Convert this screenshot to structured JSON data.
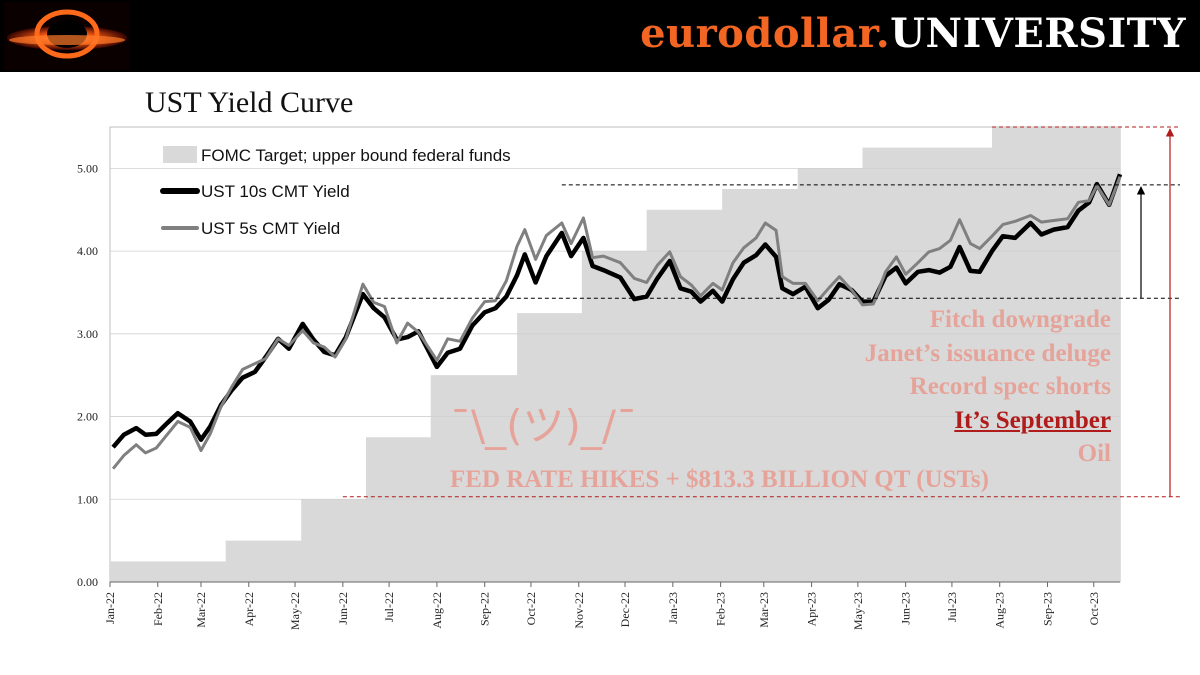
{
  "brand": {
    "part1": "eurodollar.",
    "part2": "UNIVERSITY"
  },
  "colors": {
    "brand_orange": "#f26522",
    "annotation": "#e6a39a",
    "emphasis": "#b01c1c",
    "band": "#d9d9d9",
    "ten_year": "#000000",
    "five_year": "#808080"
  },
  "chart_data": {
    "type": "line",
    "title": "UST Yield Curve",
    "xlabel": "",
    "ylabel": "",
    "ylim": [
      0,
      5.5
    ],
    "y_ticks": [
      "0.00",
      "1.00",
      "2.00",
      "3.00",
      "4.00",
      "5.00"
    ],
    "x_range": [
      "2022-01-01",
      "2023-10-18"
    ],
    "x_ticks": [
      {
        "label": "Jan-22",
        "date": "2022-01-01"
      },
      {
        "label": "Feb-22",
        "date": "2022-02-01"
      },
      {
        "label": "Mar-22",
        "date": "2022-03-01"
      },
      {
        "label": "Apr-22",
        "date": "2022-04-01"
      },
      {
        "label": "May-22",
        "date": "2022-05-01"
      },
      {
        "label": "Jun-22",
        "date": "2022-06-01"
      },
      {
        "label": "Jul-22",
        "date": "2022-07-01"
      },
      {
        "label": "Aug-22",
        "date": "2022-08-01"
      },
      {
        "label": "Sep-22",
        "date": "2022-09-01"
      },
      {
        "label": "Oct-22",
        "date": "2022-10-01"
      },
      {
        "label": "Nov-22",
        "date": "2022-11-01"
      },
      {
        "label": "Dec-22",
        "date": "2022-12-01"
      },
      {
        "label": "Jan-23",
        "date": "2023-01-01"
      },
      {
        "label": "Feb-23",
        "date": "2023-02-01"
      },
      {
        "label": "Mar-23",
        "date": "2023-03-01"
      },
      {
        "label": "Apr-23",
        "date": "2023-04-01"
      },
      {
        "label": "May-23",
        "date": "2023-05-01"
      },
      {
        "label": "Jun-23",
        "date": "2023-06-01"
      },
      {
        "label": "Jul-23",
        "date": "2023-07-01"
      },
      {
        "label": "Aug-23",
        "date": "2023-08-01"
      },
      {
        "label": "Sep-23",
        "date": "2023-09-01"
      },
      {
        "label": "Oct-23",
        "date": "2023-10-01"
      }
    ],
    "grid": true,
    "legend": "top-left",
    "band": {
      "name": "FOMC Target; upper bound federal funds",
      "steps": [
        {
          "date": "2022-01-01",
          "value": 0.25
        },
        {
          "date": "2022-03-17",
          "value": 0.5
        },
        {
          "date": "2022-05-05",
          "value": 1.0
        },
        {
          "date": "2022-06-16",
          "value": 1.75
        },
        {
          "date": "2022-07-28",
          "value": 2.5
        },
        {
          "date": "2022-09-22",
          "value": 3.25
        },
        {
          "date": "2022-11-03",
          "value": 4.0
        },
        {
          "date": "2022-12-15",
          "value": 4.5
        },
        {
          "date": "2023-02-02",
          "value": 4.75
        },
        {
          "date": "2023-03-23",
          "value": 5.0
        },
        {
          "date": "2023-05-04",
          "value": 5.25
        },
        {
          "date": "2023-07-27",
          "value": 5.5
        }
      ]
    },
    "series": [
      {
        "name": "UST 10s CMT Yield",
        "points": [
          [
            "2022-01-03",
            1.63
          ],
          [
            "2022-01-10",
            1.78
          ],
          [
            "2022-01-18",
            1.86
          ],
          [
            "2022-01-24",
            1.78
          ],
          [
            "2022-01-31",
            1.79
          ],
          [
            "2022-02-07",
            1.92
          ],
          [
            "2022-02-14",
            2.04
          ],
          [
            "2022-02-22",
            1.94
          ],
          [
            "2022-03-01",
            1.72
          ],
          [
            "2022-03-07",
            1.88
          ],
          [
            "2022-03-14",
            2.14
          ],
          [
            "2022-03-21",
            2.32
          ],
          [
            "2022-03-28",
            2.47
          ],
          [
            "2022-04-05",
            2.54
          ],
          [
            "2022-04-12",
            2.72
          ],
          [
            "2022-04-20",
            2.94
          ],
          [
            "2022-04-27",
            2.82
          ],
          [
            "2022-05-06",
            3.12
          ],
          [
            "2022-05-13",
            2.93
          ],
          [
            "2022-05-20",
            2.78
          ],
          [
            "2022-05-27",
            2.74
          ],
          [
            "2022-06-03",
            2.96
          ],
          [
            "2022-06-14",
            3.48
          ],
          [
            "2022-06-21",
            3.31
          ],
          [
            "2022-06-28",
            3.2
          ],
          [
            "2022-07-06",
            2.93
          ],
          [
            "2022-07-13",
            2.96
          ],
          [
            "2022-07-20",
            3.03
          ],
          [
            "2022-08-01",
            2.6
          ],
          [
            "2022-08-08",
            2.77
          ],
          [
            "2022-08-16",
            2.82
          ],
          [
            "2022-08-24",
            3.1
          ],
          [
            "2022-09-01",
            3.26
          ],
          [
            "2022-09-08",
            3.31
          ],
          [
            "2022-09-15",
            3.45
          ],
          [
            "2022-09-22",
            3.71
          ],
          [
            "2022-09-27",
            3.96
          ],
          [
            "2022-10-04",
            3.62
          ],
          [
            "2022-10-11",
            3.94
          ],
          [
            "2022-10-21",
            4.22
          ],
          [
            "2022-10-27",
            3.94
          ],
          [
            "2022-11-04",
            4.16
          ],
          [
            "2022-11-10",
            3.82
          ],
          [
            "2022-11-17",
            3.77
          ],
          [
            "2022-11-28",
            3.68
          ],
          [
            "2022-12-07",
            3.42
          ],
          [
            "2022-12-15",
            3.45
          ],
          [
            "2022-12-22",
            3.67
          ],
          [
            "2022-12-30",
            3.88
          ],
          [
            "2023-01-06",
            3.55
          ],
          [
            "2023-01-13",
            3.51
          ],
          [
            "2023-01-19",
            3.39
          ],
          [
            "2023-01-27",
            3.52
          ],
          [
            "2023-02-02",
            3.39
          ],
          [
            "2023-02-09",
            3.66
          ],
          [
            "2023-02-16",
            3.86
          ],
          [
            "2023-02-24",
            3.95
          ],
          [
            "2023-03-02",
            4.08
          ],
          [
            "2023-03-09",
            3.93
          ],
          [
            "2023-03-13",
            3.55
          ],
          [
            "2023-03-20",
            3.48
          ],
          [
            "2023-03-28",
            3.57
          ],
          [
            "2023-04-05",
            3.31
          ],
          [
            "2023-04-12",
            3.41
          ],
          [
            "2023-04-19",
            3.6
          ],
          [
            "2023-04-27",
            3.53
          ],
          [
            "2023-05-04",
            3.39
          ],
          [
            "2023-05-11",
            3.39
          ],
          [
            "2023-05-19",
            3.7
          ],
          [
            "2023-05-26",
            3.8
          ],
          [
            "2023-06-01",
            3.61
          ],
          [
            "2023-06-09",
            3.75
          ],
          [
            "2023-06-16",
            3.77
          ],
          [
            "2023-06-23",
            3.74
          ],
          [
            "2023-06-30",
            3.81
          ],
          [
            "2023-07-06",
            4.05
          ],
          [
            "2023-07-13",
            3.76
          ],
          [
            "2023-07-19",
            3.75
          ],
          [
            "2023-07-27",
            4.0
          ],
          [
            "2023-08-03",
            4.18
          ],
          [
            "2023-08-11",
            4.16
          ],
          [
            "2023-08-21",
            4.34
          ],
          [
            "2023-08-28",
            4.2
          ],
          [
            "2023-09-05",
            4.26
          ],
          [
            "2023-09-14",
            4.29
          ],
          [
            "2023-09-21",
            4.49
          ],
          [
            "2023-09-28",
            4.59
          ],
          [
            "2023-10-03",
            4.81
          ],
          [
            "2023-10-11",
            4.56
          ],
          [
            "2023-10-18",
            4.93
          ]
        ]
      },
      {
        "name": "UST 5s CMT Yield",
        "points": [
          [
            "2022-01-03",
            1.37
          ],
          [
            "2022-01-10",
            1.53
          ],
          [
            "2022-01-18",
            1.66
          ],
          [
            "2022-01-24",
            1.56
          ],
          [
            "2022-01-31",
            1.62
          ],
          [
            "2022-02-07",
            1.78
          ],
          [
            "2022-02-14",
            1.94
          ],
          [
            "2022-02-22",
            1.87
          ],
          [
            "2022-03-01",
            1.59
          ],
          [
            "2022-03-07",
            1.79
          ],
          [
            "2022-03-14",
            2.12
          ],
          [
            "2022-03-21",
            2.36
          ],
          [
            "2022-03-28",
            2.57
          ],
          [
            "2022-04-05",
            2.64
          ],
          [
            "2022-04-12",
            2.7
          ],
          [
            "2022-04-20",
            2.94
          ],
          [
            "2022-04-27",
            2.86
          ],
          [
            "2022-05-06",
            3.04
          ],
          [
            "2022-05-13",
            2.89
          ],
          [
            "2022-05-20",
            2.84
          ],
          [
            "2022-05-27",
            2.72
          ],
          [
            "2022-06-03",
            2.94
          ],
          [
            "2022-06-14",
            3.6
          ],
          [
            "2022-06-21",
            3.38
          ],
          [
            "2022-06-28",
            3.33
          ],
          [
            "2022-07-06",
            2.89
          ],
          [
            "2022-07-13",
            3.13
          ],
          [
            "2022-07-20",
            3.02
          ],
          [
            "2022-08-01",
            2.68
          ],
          [
            "2022-08-08",
            2.94
          ],
          [
            "2022-08-16",
            2.91
          ],
          [
            "2022-08-24",
            3.19
          ],
          [
            "2022-09-01",
            3.39
          ],
          [
            "2022-09-08",
            3.4
          ],
          [
            "2022-09-15",
            3.64
          ],
          [
            "2022-09-22",
            4.06
          ],
          [
            "2022-09-27",
            4.26
          ],
          [
            "2022-10-04",
            3.9
          ],
          [
            "2022-10-11",
            4.19
          ],
          [
            "2022-10-21",
            4.34
          ],
          [
            "2022-10-27",
            4.09
          ],
          [
            "2022-11-04",
            4.4
          ],
          [
            "2022-11-10",
            3.92
          ],
          [
            "2022-11-17",
            3.94
          ],
          [
            "2022-11-28",
            3.86
          ],
          [
            "2022-12-07",
            3.67
          ],
          [
            "2022-12-15",
            3.62
          ],
          [
            "2022-12-22",
            3.83
          ],
          [
            "2022-12-30",
            3.99
          ],
          [
            "2023-01-06",
            3.69
          ],
          [
            "2023-01-13",
            3.59
          ],
          [
            "2023-01-19",
            3.46
          ],
          [
            "2023-01-27",
            3.61
          ],
          [
            "2023-02-02",
            3.53
          ],
          [
            "2023-02-09",
            3.86
          ],
          [
            "2023-02-16",
            4.04
          ],
          [
            "2023-02-24",
            4.16
          ],
          [
            "2023-03-02",
            4.34
          ],
          [
            "2023-03-09",
            4.25
          ],
          [
            "2023-03-13",
            3.69
          ],
          [
            "2023-03-20",
            3.61
          ],
          [
            "2023-03-28",
            3.61
          ],
          [
            "2023-04-05",
            3.4
          ],
          [
            "2023-04-12",
            3.55
          ],
          [
            "2023-04-19",
            3.69
          ],
          [
            "2023-04-27",
            3.53
          ],
          [
            "2023-05-04",
            3.35
          ],
          [
            "2023-05-11",
            3.36
          ],
          [
            "2023-05-19",
            3.75
          ],
          [
            "2023-05-26",
            3.93
          ],
          [
            "2023-06-01",
            3.72
          ],
          [
            "2023-06-09",
            3.86
          ],
          [
            "2023-06-16",
            3.99
          ],
          [
            "2023-06-23",
            4.03
          ],
          [
            "2023-06-30",
            4.13
          ],
          [
            "2023-07-06",
            4.38
          ],
          [
            "2023-07-13",
            4.09
          ],
          [
            "2023-07-19",
            4.03
          ],
          [
            "2023-07-27",
            4.18
          ],
          [
            "2023-08-03",
            4.32
          ],
          [
            "2023-08-11",
            4.36
          ],
          [
            "2023-08-21",
            4.43
          ],
          [
            "2023-08-28",
            4.35
          ],
          [
            "2023-09-05",
            4.37
          ],
          [
            "2023-09-14",
            4.39
          ],
          [
            "2023-09-21",
            4.59
          ],
          [
            "2023-09-28",
            4.61
          ],
          [
            "2023-10-03",
            4.79
          ],
          [
            "2023-10-11",
            4.56
          ],
          [
            "2023-10-18",
            4.9
          ]
        ]
      }
    ],
    "reference_lines": [
      {
        "style": "dashed",
        "color": "#000000",
        "value": 3.43,
        "from": "2022-06-14",
        "to": "2023-10-18"
      },
      {
        "style": "dashed",
        "color": "#000000",
        "value": 4.8,
        "from": "2022-10-21",
        "to": "2023-10-18"
      },
      {
        "style": "dashed",
        "color": "#b01c1c",
        "value": 5.5,
        "from": "2023-07-27",
        "to": "2023-10-18"
      },
      {
        "style": "dashed",
        "color": "#b01c1c",
        "value": 1.03,
        "from": "2022-06-01",
        "to": "2023-10-18"
      }
    ],
    "arrows": [
      {
        "color": "#000000",
        "from_value": 3.43,
        "to_value": 4.8
      },
      {
        "color": "#b01c1c",
        "from_value": 1.03,
        "to_value": 5.5
      }
    ],
    "annotations": {
      "shrug": "¯\\_(ツ)_/¯",
      "fitch": "Fitch downgrade",
      "janet": "Janet’s issuance deluge",
      "record": "Record spec shorts",
      "september": "It’s September",
      "oil": "Oil",
      "fed": "FED RATE HIKES + $813.3 BILLION QT (USTs)"
    }
  }
}
